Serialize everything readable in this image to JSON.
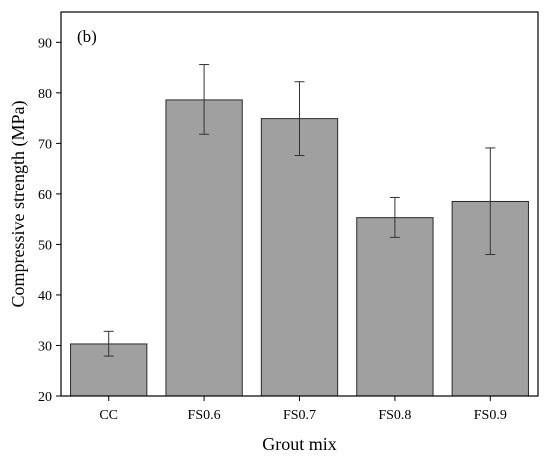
{
  "chart_data": {
    "type": "bar",
    "panel_label": "(b)",
    "xlabel": "Grout mix",
    "ylabel": "Compressive strength (MPa)",
    "categories": [
      "CC",
      "FS0.6",
      "FS0.7",
      "FS0.8",
      "FS0.9"
    ],
    "values": [
      30.3,
      78.6,
      74.9,
      55.3,
      58.5
    ],
    "error_low": [
      27.9,
      71.8,
      67.6,
      51.4,
      48.0
    ],
    "error_high": [
      32.8,
      85.6,
      82.2,
      59.3,
      69.1
    ],
    "ylim": [
      20,
      96
    ],
    "yticks": [
      20,
      30,
      40,
      50,
      60,
      70,
      80,
      90
    ],
    "ytick_labels": [
      "20",
      "30",
      "40",
      "50",
      "60",
      "70",
      "80",
      "90"
    ],
    "bar_color": "#a0a0a0",
    "bar_edge_color": "#2a2a2a",
    "grid": false
  }
}
